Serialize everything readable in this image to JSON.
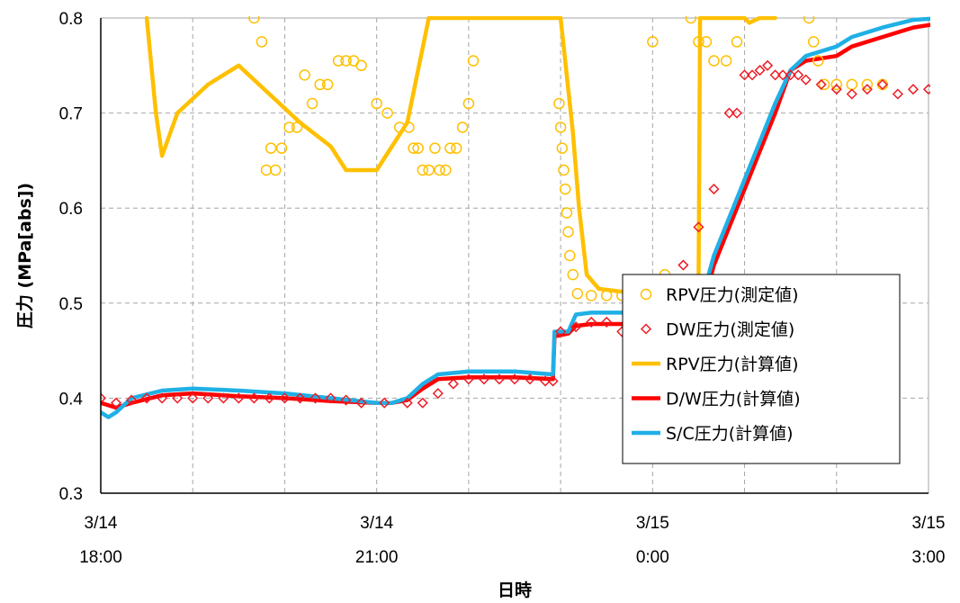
{
  "chart_data": {
    "type": "line",
    "title": "",
    "xlabel": "日時",
    "ylabel": "圧力 (MPa[abs])",
    "ylim": [
      0.3,
      0.8
    ],
    "yticks": [
      "0.3",
      "0.4",
      "0.5",
      "0.6",
      "0.7",
      "0.8"
    ],
    "xlim": [
      "3/14 18:00",
      "3/15 3:00"
    ],
    "xticks": [
      {
        "date": "3/14",
        "time": "18:00"
      },
      {
        "date": "3/14",
        "time": "21:00"
      },
      {
        "date": "3/15",
        "time": "0:00"
      },
      {
        "date": "3/15",
        "time": "3:00"
      }
    ],
    "grid": true,
    "legend_position": "lower-right",
    "series": [
      {
        "name": "RPV圧力(測定値)",
        "kind": "marker-circle",
        "color": "#FFC000",
        "points": [
          [
            "3/14 19:40",
            0.8
          ],
          [
            "3/14 19:45",
            0.775
          ],
          [
            "3/14 19:48",
            0.64
          ],
          [
            "3/14 19:51",
            0.663
          ],
          [
            "3/14 19:54",
            0.64
          ],
          [
            "3/14 19:58",
            0.663
          ],
          [
            "3/14 20:03",
            0.685
          ],
          [
            "3/14 20:08",
            0.685
          ],
          [
            "3/14 20:13",
            0.74
          ],
          [
            "3/14 20:18",
            0.71
          ],
          [
            "3/14 20:23",
            0.73
          ],
          [
            "3/14 20:28",
            0.73
          ],
          [
            "3/14 20:35",
            0.755
          ],
          [
            "3/14 20:40",
            0.755
          ],
          [
            "3/14 20:45",
            0.755
          ],
          [
            "3/14 20:50",
            0.75
          ],
          [
            "3/14 21:00",
            0.71
          ],
          [
            "3/14 21:07",
            0.7
          ],
          [
            "3/14 21:15",
            0.685
          ],
          [
            "3/14 21:21",
            0.685
          ],
          [
            "3/14 21:24",
            0.663
          ],
          [
            "3/14 21:27",
            0.663
          ],
          [
            "3/14 21:30",
            0.64
          ],
          [
            "3/14 21:34",
            0.64
          ],
          [
            "3/14 21:38",
            0.663
          ],
          [
            "3/14 21:41",
            0.64
          ],
          [
            "3/14 21:45",
            0.64
          ],
          [
            "3/14 21:48",
            0.663
          ],
          [
            "3/14 21:52",
            0.663
          ],
          [
            "3/14 21:56",
            0.685
          ],
          [
            "3/14 22:00",
            0.71
          ],
          [
            "3/14 22:03",
            0.755
          ],
          [
            "3/15 0:00",
            0.775
          ],
          [
            "3/14 22:59",
            0.71
          ],
          [
            "3/14 23:00",
            0.685
          ],
          [
            "3/14 23:01",
            0.663
          ],
          [
            "3/14 23:02",
            0.64
          ],
          [
            "3/14 23:03",
            0.62
          ],
          [
            "3/14 23:04",
            0.595
          ],
          [
            "3/14 23:05",
            0.575
          ],
          [
            "3/14 23:06",
            0.55
          ],
          [
            "3/14 23:08",
            0.53
          ],
          [
            "3/14 23:11",
            0.51
          ],
          [
            "3/14 23:20",
            0.508
          ],
          [
            "3/14 23:30",
            0.508
          ],
          [
            "3/14 23:40",
            0.508
          ],
          [
            "3/14 23:50",
            0.508
          ],
          [
            "3/14 23:58",
            0.508
          ],
          [
            "3/15 0:08",
            0.53
          ],
          [
            "3/15 0:25",
            0.8
          ],
          [
            "3/15 0:30",
            0.775
          ],
          [
            "3/15 0:35",
            0.775
          ],
          [
            "3/15 0:40",
            0.755
          ],
          [
            "3/15 0:48",
            0.755
          ],
          [
            "3/15 0:55",
            0.775
          ],
          [
            "3/15 1:42",
            0.8
          ],
          [
            "3/15 1:45",
            0.775
          ],
          [
            "3/15 1:48",
            0.755
          ],
          [
            "3/15 1:52",
            0.73
          ],
          [
            "3/15 2:00",
            0.73
          ],
          [
            "3/15 2:10",
            0.73
          ],
          [
            "3/15 2:20",
            0.73
          ],
          [
            "3/15 2:30",
            0.73
          ]
        ]
      },
      {
        "name": "DW圧力(測定値)",
        "kind": "marker-diamond",
        "color": "#EE1C25",
        "points": [
          [
            "3/14 18:00",
            0.4
          ],
          [
            "3/14 18:10",
            0.395
          ],
          [
            "3/14 18:20",
            0.398
          ],
          [
            "3/14 18:30",
            0.4
          ],
          [
            "3/14 18:40",
            0.4
          ],
          [
            "3/14 18:50",
            0.4
          ],
          [
            "3/14 19:00",
            0.4
          ],
          [
            "3/14 19:10",
            0.4
          ],
          [
            "3/14 19:20",
            0.4
          ],
          [
            "3/14 19:30",
            0.4
          ],
          [
            "3/14 19:40",
            0.4
          ],
          [
            "3/14 19:50",
            0.4
          ],
          [
            "3/14 20:00",
            0.4
          ],
          [
            "3/14 20:10",
            0.4
          ],
          [
            "3/14 20:20",
            0.4
          ],
          [
            "3/14 20:30",
            0.4
          ],
          [
            "3/14 20:40",
            0.398
          ],
          [
            "3/14 20:50",
            0.395
          ],
          [
            "3/14 21:05",
            0.395
          ],
          [
            "3/14 21:20",
            0.395
          ],
          [
            "3/14 21:30",
            0.395
          ],
          [
            "3/14 21:40",
            0.405
          ],
          [
            "3/14 21:50",
            0.415
          ],
          [
            "3/14 22:00",
            0.42
          ],
          [
            "3/14 22:10",
            0.42
          ],
          [
            "3/14 22:20",
            0.42
          ],
          [
            "3/14 22:30",
            0.42
          ],
          [
            "3/14 22:40",
            0.42
          ],
          [
            "3/14 22:50",
            0.418
          ],
          [
            "3/14 22:55",
            0.418
          ],
          [
            "3/14 23:00",
            0.47
          ],
          [
            "3/14 23:10",
            0.475
          ],
          [
            "3/14 23:20",
            0.48
          ],
          [
            "3/14 23:30",
            0.48
          ],
          [
            "3/14 23:40",
            0.47
          ],
          [
            "3/14 23:50",
            0.48
          ],
          [
            "3/15 0:00",
            0.48
          ],
          [
            "3/15 0:10",
            0.48
          ],
          [
            "3/15 0:20",
            0.54
          ],
          [
            "3/15 0:30",
            0.58
          ],
          [
            "3/15 0:40",
            0.62
          ],
          [
            "3/15 0:50",
            0.7
          ],
          [
            "3/15 0:55",
            0.7
          ],
          [
            "3/15 1:00",
            0.74
          ],
          [
            "3/15 1:05",
            0.74
          ],
          [
            "3/15 1:10",
            0.745
          ],
          [
            "3/15 1:15",
            0.75
          ],
          [
            "3/15 1:20",
            0.74
          ],
          [
            "3/15 1:25",
            0.74
          ],
          [
            "3/15 1:30",
            0.74
          ],
          [
            "3/15 1:35",
            0.74
          ],
          [
            "3/15 1:40",
            0.735
          ],
          [
            "3/15 1:50",
            0.73
          ],
          [
            "3/15 2:00",
            0.725
          ],
          [
            "3/15 2:10",
            0.72
          ],
          [
            "3/15 2:20",
            0.725
          ],
          [
            "3/15 2:30",
            0.73
          ],
          [
            "3/15 2:40",
            0.72
          ],
          [
            "3/15 2:50",
            0.725
          ],
          [
            "3/15 3:00",
            0.725
          ]
        ]
      },
      {
        "name": "RPV圧力(計算値)",
        "kind": "line",
        "color": "#FFC000",
        "points": [
          [
            "3/14 18:30",
            0.8
          ],
          [
            "3/14 18:36",
            0.7
          ],
          [
            "3/14 18:40",
            0.655
          ],
          [
            "3/14 18:50",
            0.7
          ],
          [
            "3/14 19:10",
            0.73
          ],
          [
            "3/14 19:30",
            0.75
          ],
          [
            "3/14 19:50",
            0.72
          ],
          [
            "3/14 20:10",
            0.69
          ],
          [
            "3/14 20:30",
            0.665
          ],
          [
            "3/14 20:40",
            0.64
          ],
          [
            "3/14 21:00",
            0.64
          ],
          [
            "3/14 21:20",
            0.69
          ],
          [
            "3/14 21:34",
            0.8
          ],
          [
            "3/14 23:00",
            0.8
          ],
          [
            "3/14 23:08",
            0.68
          ],
          [
            "3/14 23:12",
            0.6
          ],
          [
            "3/14 23:17",
            0.53
          ],
          [
            "3/14 23:25",
            0.515
          ],
          [
            "3/14 23:40",
            0.512
          ],
          [
            "3/15 0:00",
            0.513
          ],
          [
            "3/15 0:20",
            0.515
          ],
          [
            "3/15 0:30",
            0.515
          ],
          [
            "3/15 0:31",
            0.8
          ],
          [
            "3/15 0:35",
            0.8
          ],
          [
            "3/15 1:00",
            0.8
          ],
          [
            "3/15 1:03",
            0.795
          ],
          [
            "3/15 1:10",
            0.8
          ],
          [
            "3/15 1:20",
            0.8
          ]
        ]
      },
      {
        "name": "D/W圧力(計算値)",
        "kind": "line",
        "color": "#FF0000",
        "points": [
          [
            "3/14 18:00",
            0.395
          ],
          [
            "3/14 18:10",
            0.39
          ],
          [
            "3/14 18:20",
            0.395
          ],
          [
            "3/14 18:40",
            0.403
          ],
          [
            "3/14 19:00",
            0.405
          ],
          [
            "3/14 19:30",
            0.402
          ],
          [
            "3/14 20:00",
            0.4
          ],
          [
            "3/14 20:30",
            0.397
          ],
          [
            "3/14 21:00",
            0.395
          ],
          [
            "3/14 21:10",
            0.395
          ],
          [
            "3/14 21:20",
            0.398
          ],
          [
            "3/14 21:30",
            0.41
          ],
          [
            "3/14 21:40",
            0.42
          ],
          [
            "3/14 22:00",
            0.422
          ],
          [
            "3/14 22:30",
            0.422
          ],
          [
            "3/14 22:55",
            0.42
          ],
          [
            "3/14 22:56",
            0.465
          ],
          [
            "3/14 23:05",
            0.468
          ],
          [
            "3/14 23:10",
            0.476
          ],
          [
            "3/14 23:20",
            0.478
          ],
          [
            "3/14 23:40",
            0.478
          ],
          [
            "3/15 0:00",
            0.478
          ],
          [
            "3/15 0:30",
            0.48
          ],
          [
            "3/15 0:40",
            0.54
          ],
          [
            "3/15 0:50",
            0.58
          ],
          [
            "3/15 1:00",
            0.62
          ],
          [
            "3/15 1:10",
            0.66
          ],
          [
            "3/15 1:20",
            0.7
          ],
          [
            "3/15 1:30",
            0.745
          ],
          [
            "3/15 1:40",
            0.755
          ],
          [
            "3/15 2:00",
            0.76
          ],
          [
            "3/15 2:10",
            0.77
          ],
          [
            "3/15 2:30",
            0.78
          ],
          [
            "3/15 2:50",
            0.79
          ],
          [
            "3/15 3:10",
            0.795
          ],
          [
            "3/15 3:20",
            0.8
          ],
          [
            "3/15 3:40",
            0.8
          ]
        ]
      },
      {
        "name": "S/C圧力(計算値)",
        "kind": "line",
        "color": "#1FB0E6",
        "points": [
          [
            "3/14 18:00",
            0.385
          ],
          [
            "3/14 18:05",
            0.38
          ],
          [
            "3/14 18:10",
            0.385
          ],
          [
            "3/14 18:20",
            0.4
          ],
          [
            "3/14 18:40",
            0.408
          ],
          [
            "3/14 19:00",
            0.41
          ],
          [
            "3/14 19:30",
            0.408
          ],
          [
            "3/14 20:00",
            0.405
          ],
          [
            "3/14 20:30",
            0.4
          ],
          [
            "3/14 21:00",
            0.395
          ],
          [
            "3/14 21:10",
            0.395
          ],
          [
            "3/14 21:20",
            0.4
          ],
          [
            "3/14 21:30",
            0.415
          ],
          [
            "3/14 21:40",
            0.425
          ],
          [
            "3/14 22:00",
            0.428
          ],
          [
            "3/14 22:30",
            0.428
          ],
          [
            "3/14 22:55",
            0.425
          ],
          [
            "3/14 22:56",
            0.47
          ],
          [
            "3/14 23:05",
            0.47
          ],
          [
            "3/14 23:10",
            0.488
          ],
          [
            "3/14 23:20",
            0.49
          ],
          [
            "3/14 23:40",
            0.49
          ],
          [
            "3/15 0:00",
            0.49
          ],
          [
            "3/15 0:30",
            0.492
          ],
          [
            "3/15 0:40",
            0.55
          ],
          [
            "3/15 0:50",
            0.59
          ],
          [
            "3/15 1:00",
            0.63
          ],
          [
            "3/15 1:10",
            0.67
          ],
          [
            "3/15 1:20",
            0.71
          ],
          [
            "3/15 1:30",
            0.745
          ],
          [
            "3/15 1:40",
            0.76
          ],
          [
            "3/15 2:00",
            0.77
          ],
          [
            "3/15 2:10",
            0.78
          ],
          [
            "3/15 2:30",
            0.79
          ],
          [
            "3/15 2:50",
            0.798
          ],
          [
            "3/15 3:10",
            0.8
          ]
        ]
      }
    ]
  }
}
